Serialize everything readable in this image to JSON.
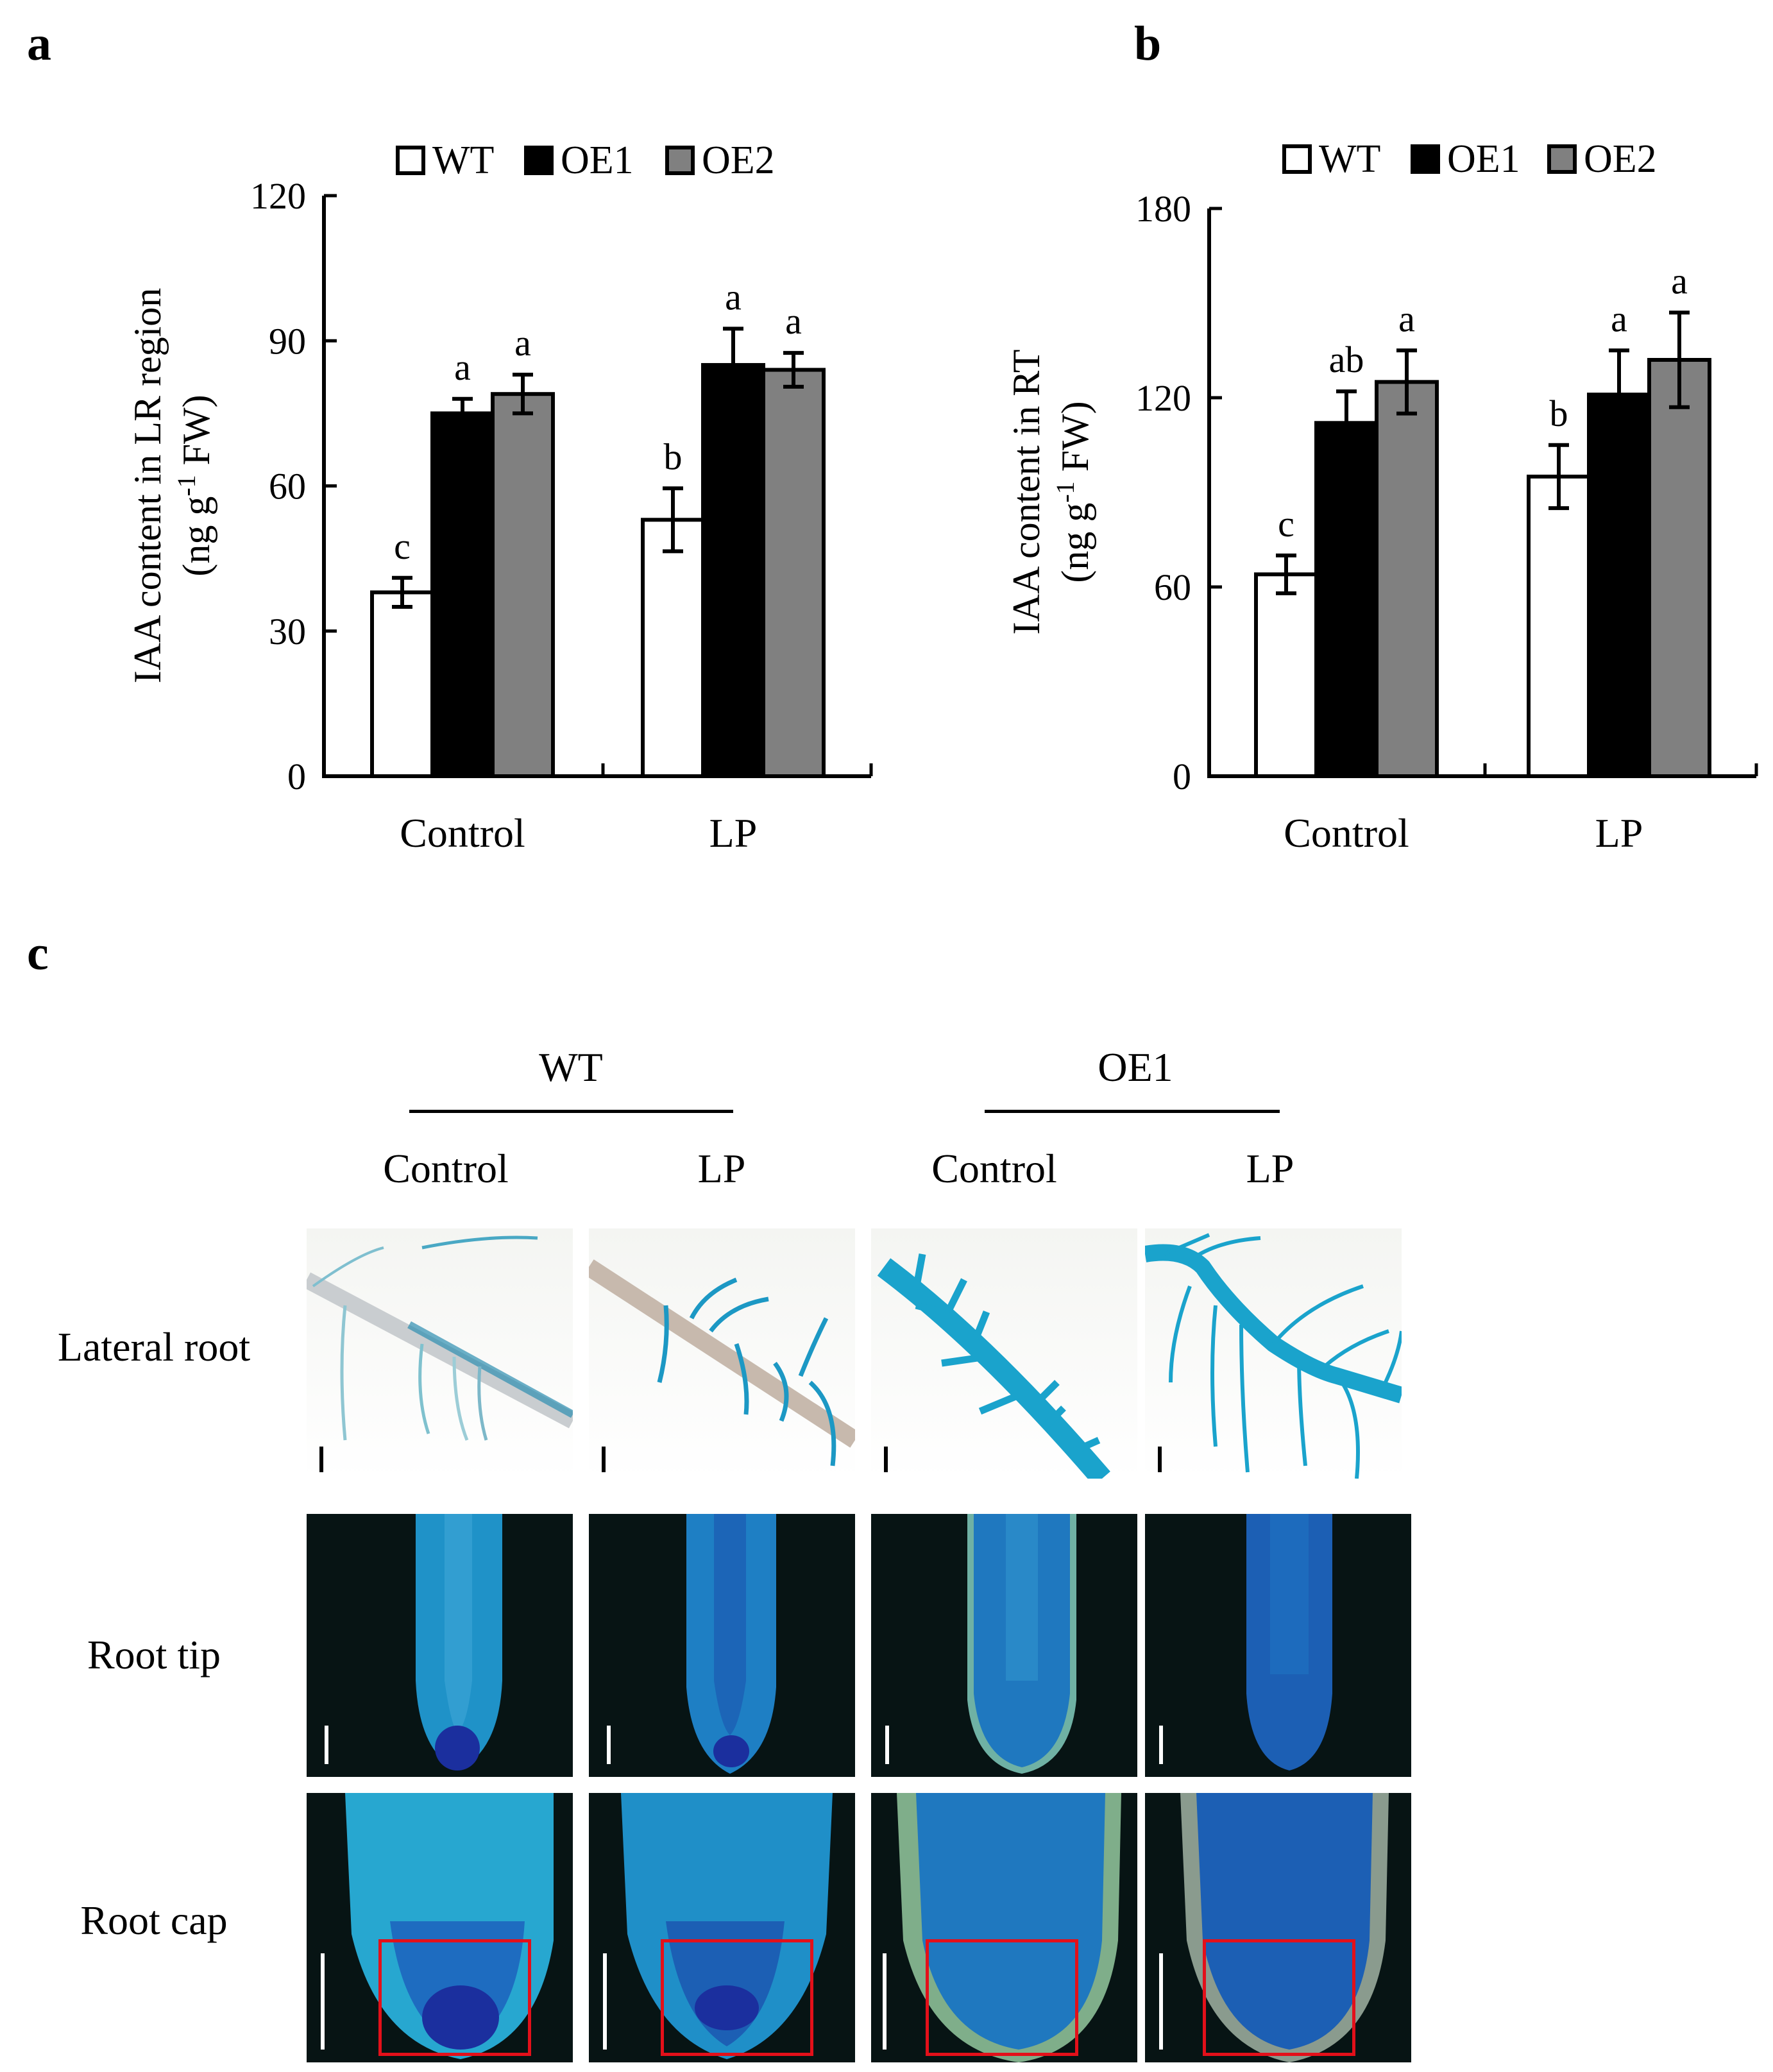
{
  "panel_labels": {
    "a": "a",
    "b": "b",
    "c": "c"
  },
  "chart_data": [
    {
      "type": "bar",
      "panel": "a",
      "ylabel_line1": "IAA content in LR region",
      "ylabel_line2_pre": "(ng g",
      "ylabel_line2_sup": "-1",
      "ylabel_line2_post": " FW)",
      "categories": [
        "Control",
        "LP"
      ],
      "ylim": [
        0,
        120
      ],
      "yticks": [
        "0",
        "30",
        "60",
        "90",
        "120"
      ],
      "legend_position": "top",
      "series": [
        {
          "name": "WT",
          "color": "#ffffff",
          "values": [
            38,
            53
          ],
          "errors": [
            3,
            6.5
          ],
          "letters": [
            "c",
            "b"
          ]
        },
        {
          "name": "OE1",
          "color": "#000000",
          "values": [
            75,
            85
          ],
          "errors": [
            3,
            7.5
          ],
          "letters": [
            "a",
            "a"
          ]
        },
        {
          "name": "OE2",
          "color": "#808080",
          "values": [
            79,
            84
          ],
          "errors": [
            4,
            3.5
          ],
          "letters": [
            "a",
            "a"
          ]
        }
      ]
    },
    {
      "type": "bar",
      "panel": "b",
      "ylabel_line1": "IAA content in RT",
      "ylabel_line2_pre": "(ng g",
      "ylabel_line2_sup": "-1",
      "ylabel_line2_post": " FW)",
      "categories": [
        "Control",
        "LP"
      ],
      "ylim": [
        0,
        180
      ],
      "yticks": [
        "0",
        "60",
        "120",
        "180"
      ],
      "legend_position": "top",
      "series": [
        {
          "name": "WT",
          "color": "#ffffff",
          "values": [
            64,
            95
          ],
          "errors": [
            6,
            10
          ],
          "letters": [
            "c",
            "b"
          ]
        },
        {
          "name": "OE1",
          "color": "#000000",
          "values": [
            112,
            121
          ],
          "errors": [
            10,
            14
          ],
          "letters": [
            "ab",
            "a"
          ]
        },
        {
          "name": "OE2",
          "color": "#808080",
          "values": [
            125,
            132
          ],
          "errors": [
            10,
            15
          ],
          "letters": [
            "a",
            "a"
          ]
        }
      ]
    }
  ],
  "panel_c": {
    "groups": [
      {
        "label": "WT",
        "conditions": [
          "Control",
          "LP"
        ]
      },
      {
        "label": "OE1",
        "conditions": [
          "Control",
          "LP"
        ]
      }
    ],
    "row_labels": [
      "Lateral root",
      "Root tip",
      "Root cap"
    ],
    "colors": {
      "gus_blue": "#1a8fb8",
      "deep_blue": "#1b2f9e",
      "highlight_box": "#e3101a"
    }
  }
}
